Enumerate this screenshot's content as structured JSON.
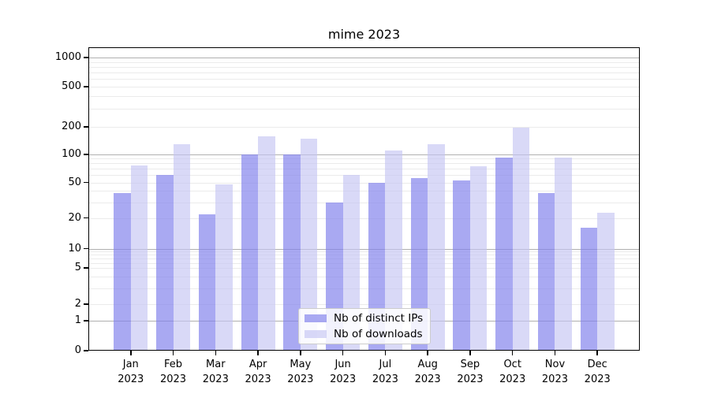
{
  "chart_data": {
    "type": "bar",
    "title": "mime 2023",
    "categories": [
      "Jan 2023",
      "Feb 2023",
      "Mar 2023",
      "Apr 2023",
      "May 2023",
      "Jun 2023",
      "Jul 2023",
      "Aug 2023",
      "Sep 2023",
      "Oct 2023",
      "Nov 2023",
      "Dec 2023"
    ],
    "series": [
      {
        "name": "Nb of distinct IPs",
        "color": "#a8a8f2",
        "fill": "rgba(128,128,236,0.68)",
        "values": [
          38,
          60,
          22,
          100,
          100,
          30,
          50,
          56,
          52,
          93,
          38,
          16
        ]
      },
      {
        "name": "Nb of downloads",
        "color": "#d8d8f6",
        "fill": "rgba(196,196,242,0.65)",
        "values": [
          76,
          130,
          48,
          157,
          150,
          60,
          110,
          130,
          75,
          195,
          93,
          23
        ]
      }
    ],
    "y_axis": {
      "scale": "symlog",
      "tick_values": [
        0,
        1,
        2,
        5,
        10,
        20,
        50,
        100,
        200,
        500,
        1000
      ],
      "tick_labels": [
        "0",
        "1",
        "2",
        "5",
        "10",
        "20",
        "50",
        "100",
        "200",
        "500",
        "1000"
      ],
      "ylim": [
        0,
        1300
      ]
    },
    "x_axis": {
      "year_line": "2023"
    },
    "legend": {
      "position": "bottom-center",
      "entries": [
        "Nb of distinct IPs",
        "Nb of downloads"
      ]
    },
    "grid": true
  }
}
